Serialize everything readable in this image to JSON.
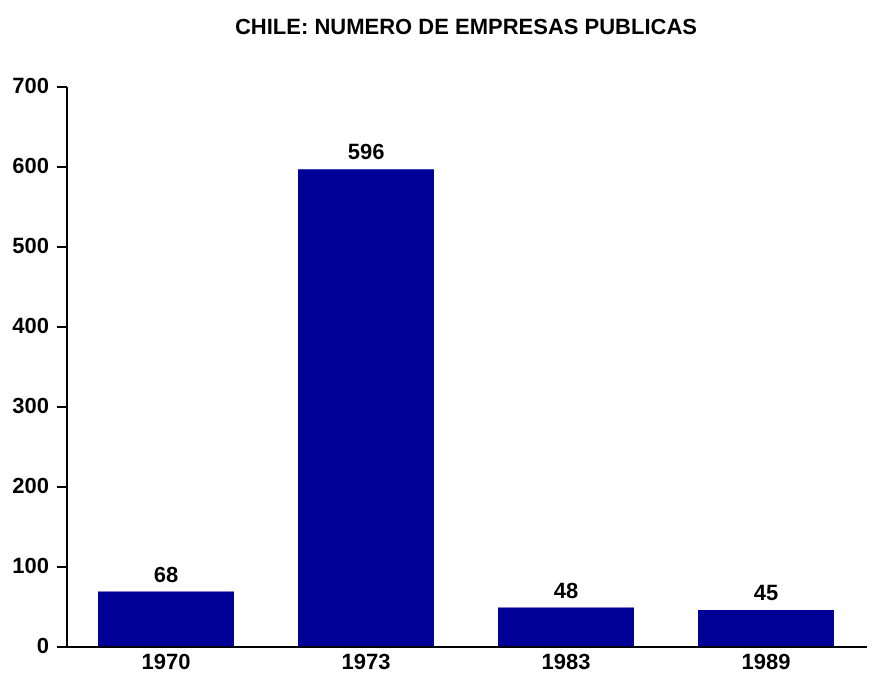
{
  "chart_data": {
    "type": "bar",
    "title": "CHILE: NUMERO DE EMPRESAS PUBLICAS",
    "categories": [
      "1970",
      "1973",
      "1983",
      "1989"
    ],
    "values": [
      68,
      596,
      48,
      45
    ],
    "color": "#000099",
    "ylim": [
      0,
      700
    ],
    "yticks": [
      0,
      100,
      200,
      300,
      400,
      500,
      600,
      700
    ],
    "data_labels": true,
    "grid": false
  }
}
